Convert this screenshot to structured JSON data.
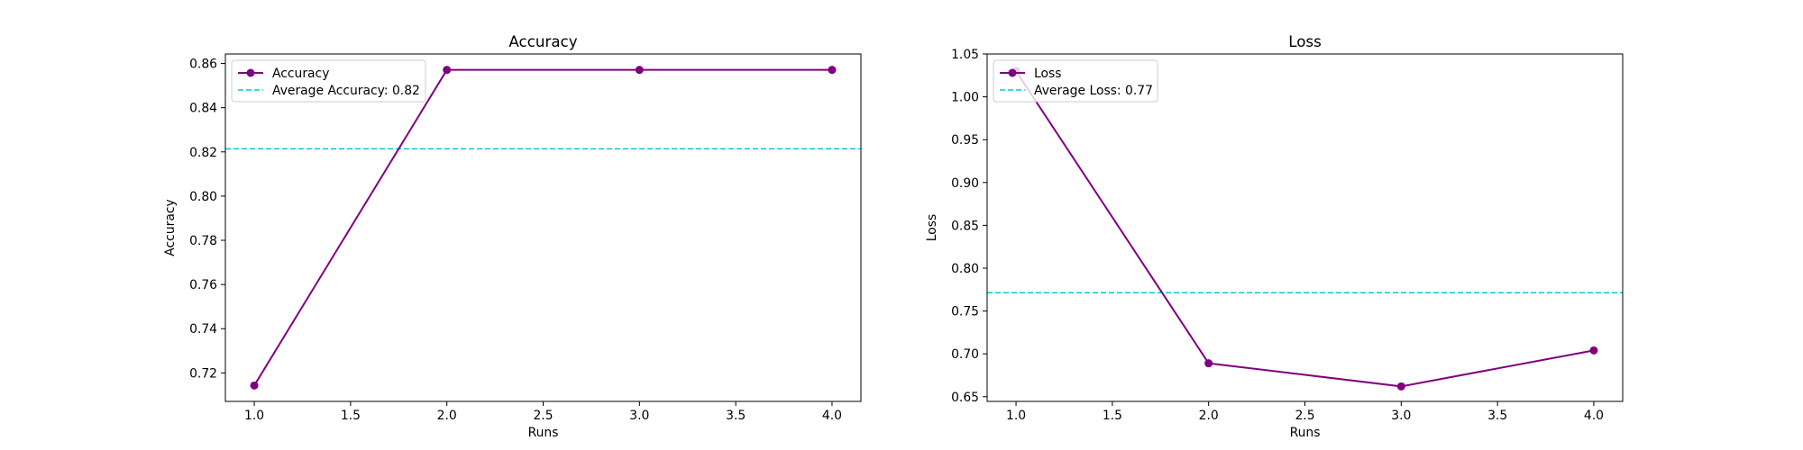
{
  "chart_data": [
    {
      "type": "line",
      "title": "Accuracy",
      "xlabel": "Runs",
      "ylabel": "Accuracy",
      "xlim": [
        0.85,
        4.15
      ],
      "ylim": [
        0.7071,
        0.8643
      ],
      "xticks": [
        1.0,
        1.5,
        2.0,
        2.5,
        3.0,
        3.5,
        4.0
      ],
      "xtick_labels": [
        "1.0",
        "1.5",
        "2.0",
        "2.5",
        "3.0",
        "3.5",
        "4.0"
      ],
      "yticks": [
        0.72,
        0.74,
        0.76,
        0.78,
        0.8,
        0.82,
        0.84,
        0.86
      ],
      "ytick_labels": [
        "0.72",
        "0.74",
        "0.76",
        "0.78",
        "0.80",
        "0.82",
        "0.84",
        "0.86"
      ],
      "grid": false,
      "legend_position": "top-left",
      "series": [
        {
          "name": "Accuracy",
          "x": [
            1,
            2,
            3,
            4
          ],
          "y": [
            0.7143,
            0.8571,
            0.8571,
            0.8571
          ],
          "color": "#800080",
          "marker": "circle"
        }
      ],
      "hlines": [
        {
          "name": "Average Accuracy: 0.82",
          "y": 0.8214,
          "color": "#00cccc",
          "style": "dashed"
        }
      ]
    },
    {
      "type": "line",
      "title": "Loss",
      "xlabel": "Runs",
      "ylabel": "Loss",
      "xlim": [
        0.85,
        4.15
      ],
      "ylim": [
        0.6445,
        1.05
      ],
      "xticks": [
        1.0,
        1.5,
        2.0,
        2.5,
        3.0,
        3.5,
        4.0
      ],
      "xtick_labels": [
        "1.0",
        "1.5",
        "2.0",
        "2.5",
        "3.0",
        "3.5",
        "4.0"
      ],
      "yticks": [
        0.65,
        0.7,
        0.75,
        0.8,
        0.85,
        0.9,
        0.95,
        1.0,
        1.05
      ],
      "ytick_labels": [
        "0.65",
        "0.70",
        "0.75",
        "0.80",
        "0.85",
        "0.90",
        "0.95",
        "1.00",
        "1.05"
      ],
      "grid": false,
      "legend_position": "top-left",
      "series": [
        {
          "name": "Loss",
          "x": [
            1,
            2,
            3,
            4
          ],
          "y": [
            1.03,
            0.689,
            0.662,
            0.704
          ],
          "color": "#800080",
          "marker": "circle"
        }
      ],
      "hlines": [
        {
          "name": "Average Loss: 0.77",
          "y": 0.7714,
          "color": "#00cccc",
          "style": "dashed"
        }
      ]
    }
  ]
}
